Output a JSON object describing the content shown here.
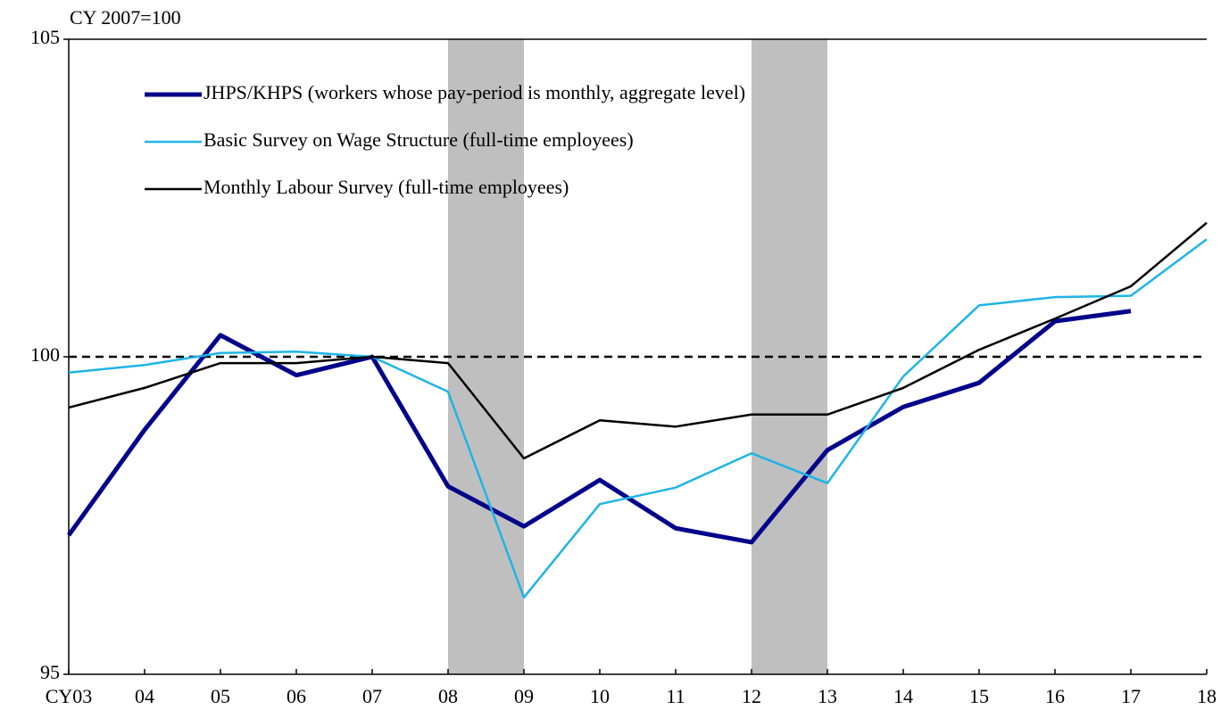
{
  "chart_data": {
    "type": "line",
    "y_label": "CY 2007=100",
    "categories": [
      "CY03",
      "04",
      "05",
      "06",
      "07",
      "08",
      "09",
      "10",
      "11",
      "12",
      "13",
      "14",
      "15",
      "16",
      "17",
      "18"
    ],
    "series": [
      {
        "name": "JHPS/KHPS (workers whose pay-period is monthly, aggregate level)",
        "color": "#00008b",
        "width": 5,
        "values": [
          97.19,
          98.85,
          100.34,
          99.71,
          100,
          97.96,
          97.33,
          98.06,
          97.3,
          97.08,
          98.53,
          99.21,
          99.59,
          100.56,
          100.72,
          null
        ]
      },
      {
        "name": "Basic Survey on Wage Structure (full-time employees)",
        "color": "#1eb4e6",
        "width": 2.5,
        "values": [
          99.75,
          99.87,
          100.06,
          100.08,
          100,
          99.45,
          96.21,
          97.68,
          97.94,
          98.48,
          98.01,
          99.69,
          100.81,
          100.94,
          100.96,
          101.85
        ]
      },
      {
        "name": "Monthly Labour Survey (full-time employees)",
        "color": "#000000",
        "width": 2.5,
        "values": [
          99.2,
          99.51,
          99.9,
          99.9,
          100,
          99.9,
          98.4,
          99.0,
          98.9,
          99.09,
          99.09,
          99.51,
          100.11,
          100.6,
          101.11,
          102.11
        ]
      }
    ],
    "shaded": [
      {
        "from": "08",
        "to": "09"
      },
      {
        "from": "12",
        "to": "13"
      }
    ],
    "shade_color": "#bfbfbf",
    "hline": 100,
    "ylim": [
      95,
      105
    ],
    "yticks": [
      95,
      100,
      105
    ]
  }
}
